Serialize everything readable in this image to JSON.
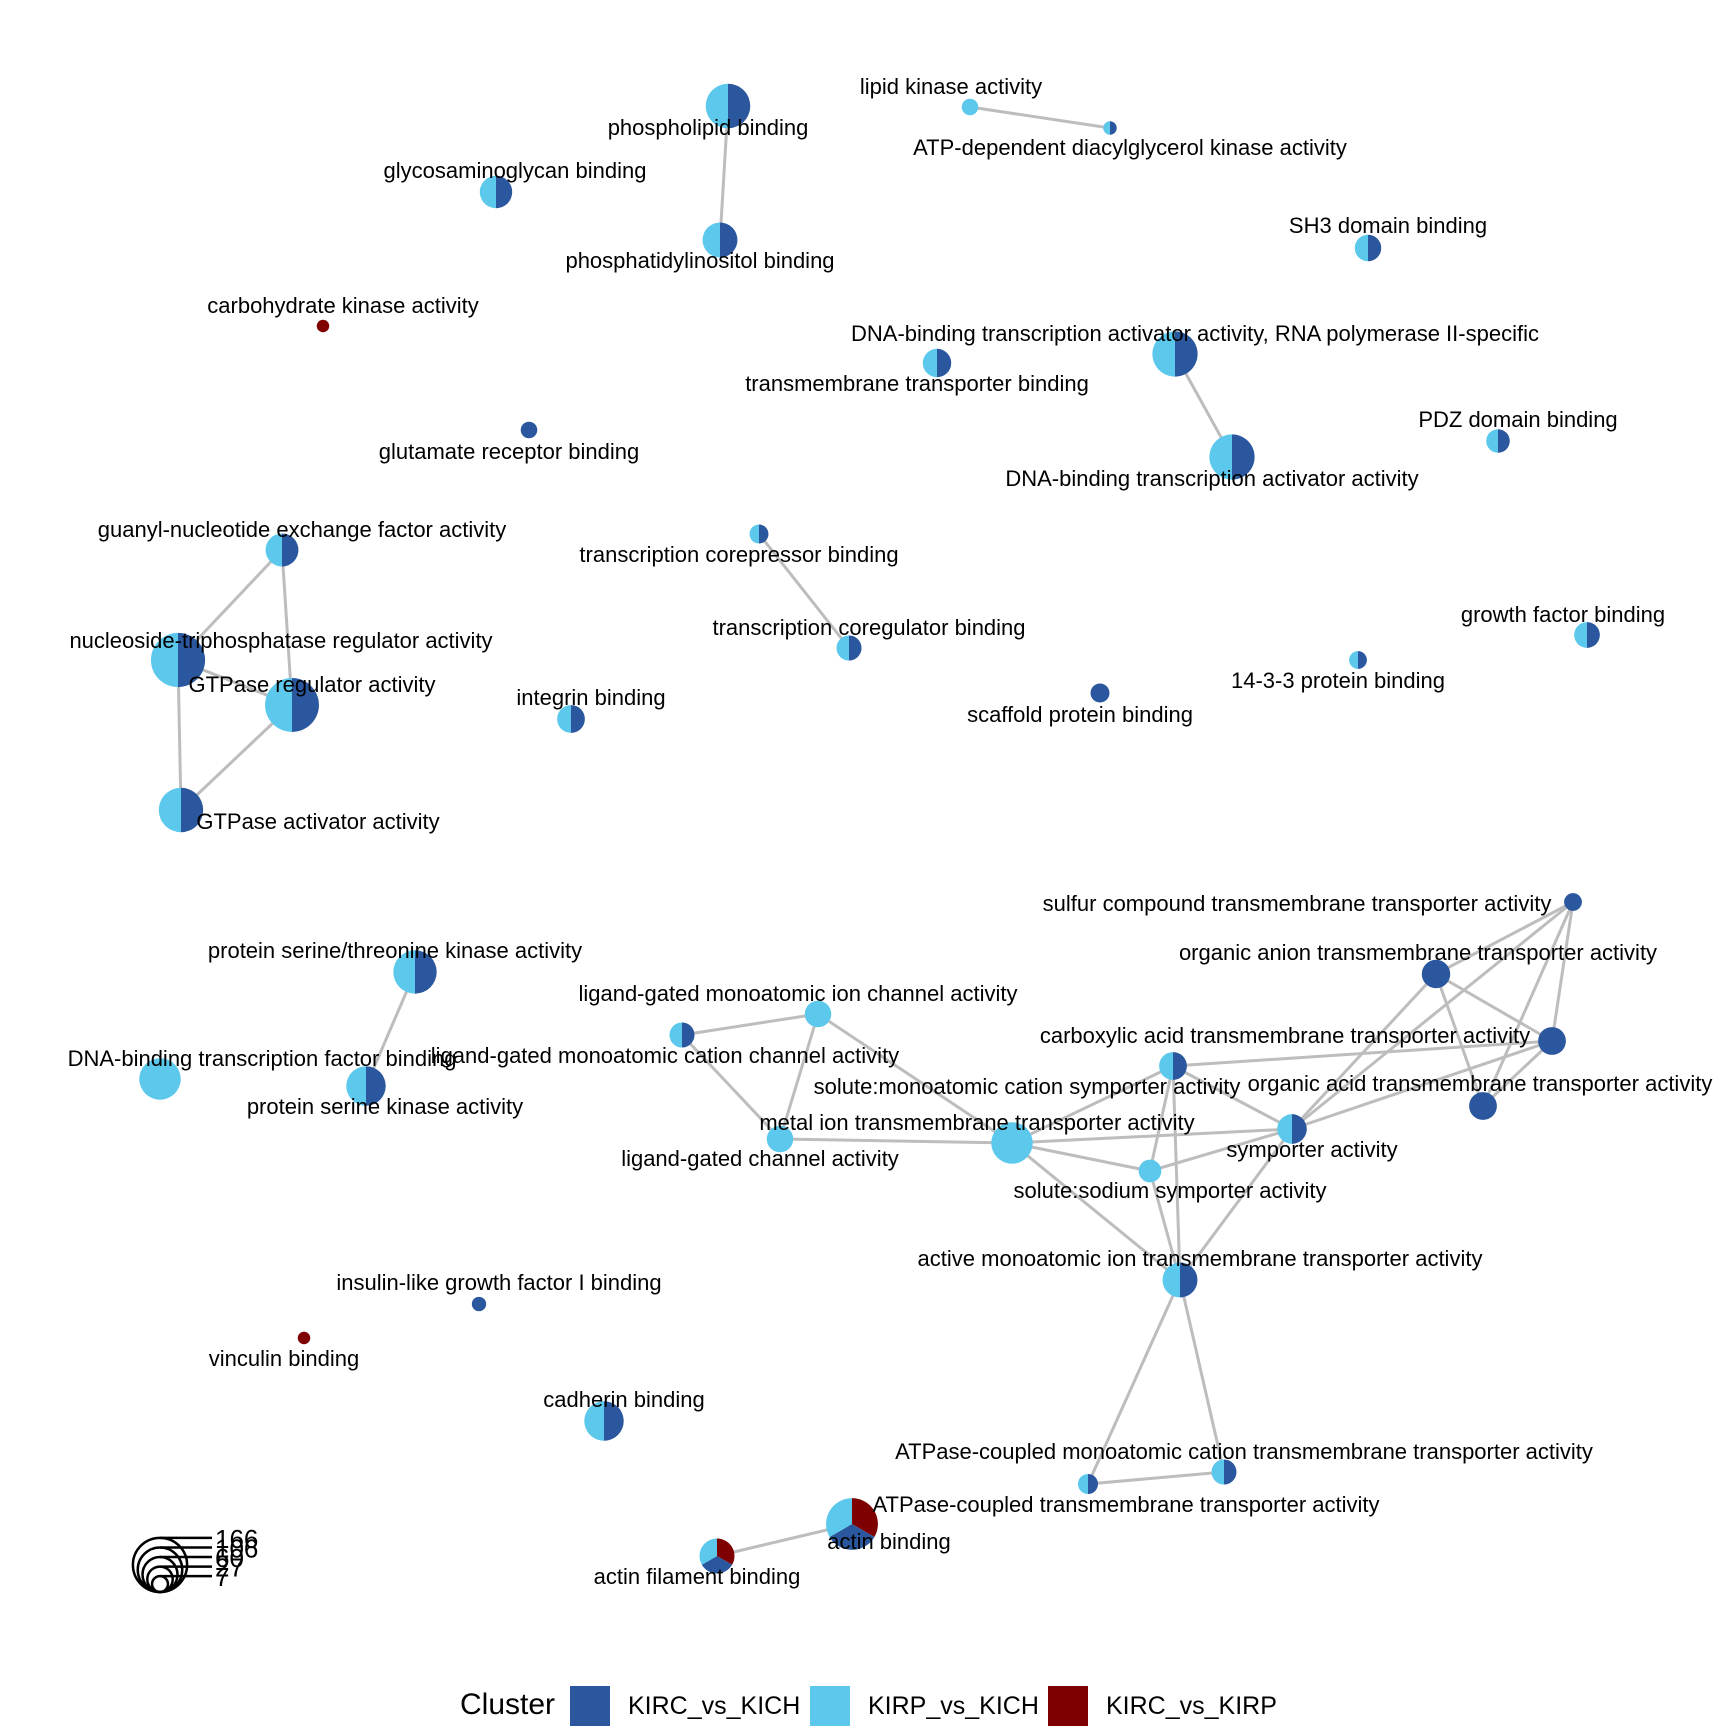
{
  "colors": {
    "KIRC_vs_KICH": "#2a579d",
    "KIRP_vs_KICH": "#5bc8ec",
    "KIRC_vs_KIRP": "#7f0000",
    "edge": "#bdbdbd"
  },
  "legend": {
    "title": "Cluster",
    "items": [
      {
        "key": "KIRC_vs_KICH",
        "label": "KIRC_vs_KICH"
      },
      {
        "key": "KIRP_vs_KICH",
        "label": "KIRP_vs_KICH"
      },
      {
        "key": "KIRC_vs_KIRP",
        "label": "KIRC_vs_KIRP"
      }
    ]
  },
  "size_legend": {
    "values": [
      7,
      27,
      60,
      106,
      166
    ]
  },
  "nodes": [
    {
      "label": "phospholipid binding",
      "count": 106,
      "clusters": [
        "KIRC_vs_KICH",
        "KIRP_vs_KICH"
      ]
    },
    {
      "label": "phosphatidylinositol binding",
      "count": 60,
      "clusters": [
        "KIRC_vs_KICH",
        "KIRP_vs_KICH"
      ]
    },
    {
      "label": "lipid kinase activity",
      "count": 8,
      "clusters": [
        "KIRP_vs_KICH"
      ]
    },
    {
      "label": "ATP-dependent diacylglycerol kinase activity",
      "count": 4,
      "clusters": [
        "KIRC_vs_KICH",
        "KIRP_vs_KICH"
      ]
    },
    {
      "label": "glycosaminoglycan binding",
      "count": 50,
      "clusters": [
        "KIRC_vs_KICH",
        "KIRP_vs_KICH"
      ]
    },
    {
      "label": "SH3 domain binding",
      "count": 30,
      "clusters": [
        "KIRC_vs_KICH",
        "KIRP_vs_KICH"
      ]
    },
    {
      "label": "carbohydrate kinase activity",
      "count": 3,
      "clusters": [
        "KIRC_vs_KIRP"
      ]
    },
    {
      "label": "DNA-binding transcription activator activity, RNA polymerase II-specific",
      "count": 110,
      "clusters": [
        "KIRC_vs_KICH",
        "KIRP_vs_KICH"
      ]
    },
    {
      "label": "transmembrane transporter binding",
      "count": 36,
      "clusters": [
        "KIRC_vs_KICH",
        "KIRP_vs_KICH"
      ]
    },
    {
      "label": "glutamate receptor binding",
      "count": 8,
      "clusters": [
        "KIRC_vs_KICH"
      ]
    },
    {
      "label": "DNA-binding transcription activator activity",
      "count": 110,
      "clusters": [
        "KIRC_vs_KICH",
        "KIRP_vs_KICH"
      ]
    },
    {
      "label": "PDZ domain binding",
      "count": 22,
      "clusters": [
        "KIRC_vs_KICH",
        "KIRP_vs_KICH"
      ]
    },
    {
      "label": "guanyl-nucleotide exchange factor activity",
      "count": 52,
      "clusters": [
        "KIRC_vs_KICH",
        "KIRP_vs_KICH"
      ]
    },
    {
      "label": "transcription corepressor binding",
      "count": 12,
      "clusters": [
        "KIRC_vs_KICH",
        "KIRP_vs_KICH"
      ]
    },
    {
      "label": "nucleoside-triphosphatase regulator activity",
      "count": 166,
      "clusters": [
        "KIRC_vs_KICH",
        "KIRP_vs_KICH"
      ]
    },
    {
      "label": "transcription coregulator binding",
      "count": 26,
      "clusters": [
        "KIRC_vs_KICH",
        "KIRP_vs_KICH"
      ]
    },
    {
      "label": "growth factor binding",
      "count": 28,
      "clusters": [
        "KIRC_vs_KICH",
        "KIRP_vs_KICH"
      ]
    },
    {
      "label": "GTPase regulator activity",
      "count": 164,
      "clusters": [
        "KIRC_vs_KICH",
        "KIRP_vs_KICH"
      ]
    },
    {
      "label": "14-3-3 protein binding",
      "count": 10,
      "clusters": [
        "KIRC_vs_KICH",
        "KIRP_vs_KICH"
      ]
    },
    {
      "label": "integrin binding",
      "count": 34,
      "clusters": [
        "KIRC_vs_KICH",
        "KIRP_vs_KICH"
      ]
    },
    {
      "label": "scaffold protein binding",
      "count": 12,
      "clusters": [
        "KIRC_vs_KICH"
      ]
    },
    {
      "label": "GTPase activator activity",
      "count": 106,
      "clusters": [
        "KIRC_vs_KICH",
        "KIRP_vs_KICH"
      ]
    },
    {
      "label": "sulfur compound transmembrane transporter activity",
      "count": 10,
      "clusters": [
        "KIRC_vs_KICH"
      ]
    },
    {
      "label": "organic anion transmembrane transporter activity",
      "count": 36,
      "clusters": [
        "KIRC_vs_KICH"
      ]
    },
    {
      "label": "protein serine/threonine kinase activity",
      "count": 100,
      "clusters": [
        "KIRC_vs_KICH",
        "KIRP_vs_KICH"
      ]
    },
    {
      "label": "ligand-gated monoatomic ion channel activity",
      "count": 30,
      "clusters": [
        "KIRP_vs_KICH"
      ]
    },
    {
      "label": "ligand-gated monoatomic cation channel activity",
      "count": 26,
      "clusters": [
        "KIRC_vs_KICH",
        "KIRP_vs_KICH"
      ]
    },
    {
      "label": "carboxylic acid transmembrane transporter activity",
      "count": 34,
      "clusters": [
        "KIRC_vs_KICH",
        "KIRP_vs_KICH"
      ]
    },
    {
      "label": "organic acid transmembrane transporter activity",
      "count": 34,
      "clusters": [
        "KIRC_vs_KICH"
      ]
    },
    {
      "label": "DNA-binding transcription factor binding",
      "count": 90,
      "clusters": [
        "KIRP_vs_KICH"
      ]
    },
    {
      "label": "solute:monoatomic cation symporter activity",
      "count": 34,
      "clusters": [
        "KIRC_vs_KICH"
      ]
    },
    {
      "label": "protein serine kinase activity",
      "count": 80,
      "clusters": [
        "KIRC_vs_KICH",
        "KIRP_vs_KICH"
      ]
    },
    {
      "label": "metal ion transmembrane transporter activity",
      "count": 90,
      "clusters": [
        "KIRP_vs_KICH"
      ]
    },
    {
      "label": "symporter activity",
      "count": 40,
      "clusters": [
        "KIRC_vs_KICH",
        "KIRP_vs_KICH"
      ]
    },
    {
      "label": "ligand-gated channel activity",
      "count": 30,
      "clusters": [
        "KIRP_vs_KICH"
      ]
    },
    {
      "label": "solute:sodium symporter activity",
      "count": 20,
      "clusters": [
        "KIRP_vs_KICH"
      ]
    },
    {
      "label": "active monoatomic ion transmembrane transporter activity",
      "count": 60,
      "clusters": [
        "KIRC_vs_KICH",
        "KIRP_vs_KICH"
      ]
    },
    {
      "label": "insulin-like growth factor I binding",
      "count": 5,
      "clusters": [
        "KIRC_vs_KICH"
      ]
    },
    {
      "label": "vinculin binding",
      "count": 3,
      "clusters": [
        "KIRC_vs_KIRP"
      ]
    },
    {
      "label": "cadherin binding",
      "count": 80,
      "clusters": [
        "KIRC_vs_KICH",
        "KIRP_vs_KICH"
      ]
    },
    {
      "label": "ATPase-coupled monoatomic cation transmembrane transporter activity",
      "count": 14,
      "clusters": [
        "KIRC_vs_KICH",
        "KIRP_vs_KICH"
      ]
    },
    {
      "label": "ATPase-coupled transmembrane transporter activity",
      "count": 26,
      "clusters": [
        "KIRC_vs_KICH",
        "KIRP_vs_KICH"
      ]
    },
    {
      "label": "actin binding",
      "count": 150,
      "clusters": [
        "KIRC_vs_KIRP",
        "KIRC_vs_KICH",
        "KIRP_vs_KICH"
      ]
    },
    {
      "label": "actin filament binding",
      "count": 60,
      "clusters": [
        "KIRC_vs_KIRP",
        "KIRC_vs_KICH",
        "KIRP_vs_KICH"
      ]
    }
  ],
  "edges": [
    [
      "phospholipid binding",
      "phosphatidylinositol binding"
    ],
    [
      "lipid kinase activity",
      "ATP-dependent diacylglycerol kinase activity"
    ],
    [
      "DNA-binding transcription activator activity, RNA polymerase II-specific",
      "DNA-binding transcription activator activity"
    ],
    [
      "transcription corepressor binding",
      "transcription coregulator binding"
    ],
    [
      "guanyl-nucleotide exchange factor activity",
      "nucleoside-triphosphatase regulator activity"
    ],
    [
      "guanyl-nucleotide exchange factor activity",
      "GTPase regulator activity"
    ],
    [
      "nucleoside-triphosphatase regulator activity",
      "GTPase regulator activity"
    ],
    [
      "nucleoside-triphosphatase regulator activity",
      "GTPase activator activity"
    ],
    [
      "GTPase regulator activity",
      "GTPase activator activity"
    ],
    [
      "protein serine/threonine kinase activity",
      "protein serine kinase activity"
    ],
    [
      "ligand-gated monoatomic ion channel activity",
      "ligand-gated monoatomic cation channel activity"
    ],
    [
      "ligand-gated monoatomic ion channel activity",
      "ligand-gated channel activity"
    ],
    [
      "ligand-gated monoatomic cation channel activity",
      "ligand-gated channel activity"
    ],
    [
      "ligand-gated monoatomic ion channel activity",
      "metal ion transmembrane transporter activity"
    ],
    [
      "ligand-gated channel activity",
      "metal ion transmembrane transporter activity"
    ],
    [
      "metal ion transmembrane transporter activity",
      "carboxylic acid transmembrane transporter activity"
    ],
    [
      "metal ion transmembrane transporter activity",
      "symporter activity"
    ],
    [
      "metal ion transmembrane transporter activity",
      "solute:sodium symporter activity"
    ],
    [
      "metal ion transmembrane transporter activity",
      "active monoatomic ion transmembrane transporter activity"
    ],
    [
      "carboxylic acid transmembrane transporter activity",
      "symporter activity"
    ],
    [
      "carboxylic acid transmembrane transporter activity",
      "solute:sodium symporter activity"
    ],
    [
      "carboxylic acid transmembrane transporter activity",
      "active monoatomic ion transmembrane transporter activity"
    ],
    [
      "carboxylic acid transmembrane transporter activity",
      "organic acid transmembrane transporter activity"
    ],
    [
      "symporter activity",
      "solute:sodium symporter activity"
    ],
    [
      "symporter activity",
      "active monoatomic ion transmembrane transporter activity"
    ],
    [
      "symporter activity",
      "organic anion transmembrane transporter activity"
    ],
    [
      "symporter activity",
      "sulfur compound transmembrane transporter activity"
    ],
    [
      "symporter activity",
      "organic acid transmembrane transporter activity"
    ],
    [
      "solute:sodium symporter activity",
      "active monoatomic ion transmembrane transporter activity"
    ],
    [
      "organic anion transmembrane transporter activity",
      "sulfur compound transmembrane transporter activity"
    ],
    [
      "organic anion transmembrane transporter activity",
      "organic acid transmembrane transporter activity"
    ],
    [
      "organic anion transmembrane transporter activity",
      "solute:monoatomic cation symporter activity"
    ],
    [
      "sulfur compound transmembrane transporter activity",
      "organic acid transmembrane transporter activity"
    ],
    [
      "sulfur compound transmembrane transporter activity",
      "solute:monoatomic cation symporter activity"
    ],
    [
      "organic acid transmembrane transporter activity",
      "solute:monoatomic cation symporter activity"
    ],
    [
      "active monoatomic ion transmembrane transporter activity",
      "ATPase-coupled transmembrane transporter activity"
    ],
    [
      "active monoatomic ion transmembrane transporter activity",
      "ATPase-coupled monoatomic cation transmembrane transporter activity"
    ],
    [
      "ATPase-coupled transmembrane transporter activity",
      "ATPase-coupled monoatomic cation transmembrane transporter activity"
    ],
    [
      "actin binding",
      "actin filament binding"
    ]
  ]
}
